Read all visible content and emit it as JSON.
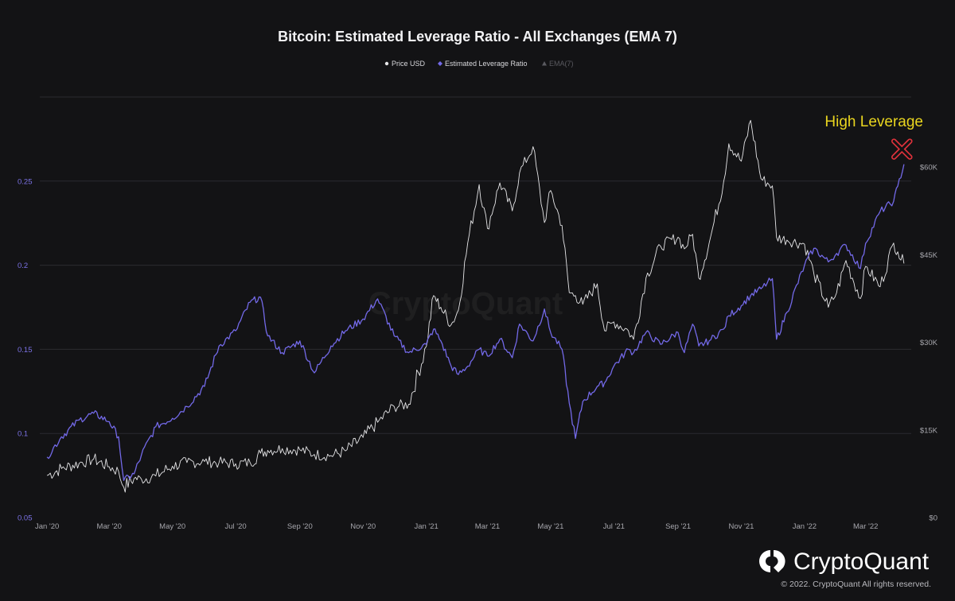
{
  "page": {
    "copyright": "© 2022. CryptoQuant All rights reserved.",
    "brand_name": "CryptoQuant",
    "watermark": "CryptoQuant",
    "colors": {
      "background": "#131315",
      "leverage": "#7369e8",
      "price": "#e6e6e8",
      "annotation": "#e9d51f",
      "marker": "#e0323c"
    }
  },
  "chart_data": {
    "type": "line",
    "title": "Bitcoin: Estimated Leverage Ratio - All Exchanges (EMA 7)",
    "legend": [
      {
        "label": "Price USD",
        "marker": "circle",
        "color": "#e6e6e8",
        "active": true
      },
      {
        "label": "Estimated Leverage Ratio",
        "marker": "diamond",
        "color": "#7369e8",
        "active": true
      },
      {
        "label": "EMA(7)",
        "marker": "triangle",
        "color": "#5a5a60",
        "active": false
      }
    ],
    "legend_position": "top-center",
    "grid": true,
    "x": [
      "2020-01-01",
      "2020-01-15",
      "2020-02-01",
      "2020-02-15",
      "2020-03-01",
      "2020-03-10",
      "2020-03-15",
      "2020-03-25",
      "2020-04-01",
      "2020-04-15",
      "2020-05-01",
      "2020-05-15",
      "2020-06-01",
      "2020-06-15",
      "2020-07-01",
      "2020-07-15",
      "2020-07-25",
      "2020-08-01",
      "2020-08-15",
      "2020-09-01",
      "2020-09-15",
      "2020-10-01",
      "2020-10-15",
      "2020-11-01",
      "2020-11-15",
      "2020-12-01",
      "2020-12-15",
      "2021-01-01",
      "2021-01-08",
      "2021-01-15",
      "2021-01-25",
      "2021-02-01",
      "2021-02-10",
      "2021-02-21",
      "2021-03-01",
      "2021-03-13",
      "2021-03-25",
      "2021-04-01",
      "2021-04-14",
      "2021-04-25",
      "2021-05-01",
      "2021-05-12",
      "2021-05-19",
      "2021-05-25",
      "2021-06-01",
      "2021-06-15",
      "2021-06-22",
      "2021-07-01",
      "2021-07-15",
      "2021-07-20",
      "2021-08-01",
      "2021-08-15",
      "2021-09-01",
      "2021-09-07",
      "2021-09-15",
      "2021-09-21",
      "2021-10-01",
      "2021-10-15",
      "2021-10-20",
      "2021-11-01",
      "2021-11-10",
      "2021-11-20",
      "2021-12-01",
      "2021-12-05",
      "2021-12-15",
      "2022-01-01",
      "2022-01-10",
      "2022-01-24",
      "2022-02-01",
      "2022-02-10",
      "2022-02-24",
      "2022-03-01",
      "2022-03-15",
      "2022-03-28",
      "2022-04-01",
      "2022-04-07"
    ],
    "series": [
      {
        "name": "Estimated Leverage Ratio",
        "axis": "left",
        "color": "#7369e8",
        "values": [
          0.086,
          0.098,
          0.108,
          0.112,
          0.107,
          0.098,
          0.072,
          0.076,
          0.087,
          0.104,
          0.109,
          0.116,
          0.128,
          0.152,
          0.161,
          0.178,
          0.181,
          0.158,
          0.148,
          0.155,
          0.136,
          0.152,
          0.161,
          0.168,
          0.18,
          0.158,
          0.148,
          0.153,
          0.162,
          0.155,
          0.14,
          0.135,
          0.14,
          0.15,
          0.146,
          0.156,
          0.145,
          0.165,
          0.155,
          0.174,
          0.16,
          0.15,
          0.118,
          0.097,
          0.119,
          0.128,
          0.13,
          0.14,
          0.15,
          0.148,
          0.16,
          0.153,
          0.16,
          0.148,
          0.165,
          0.152,
          0.155,
          0.162,
          0.17,
          0.176,
          0.182,
          0.186,
          0.192,
          0.156,
          0.172,
          0.2,
          0.21,
          0.202,
          0.207,
          0.212,
          0.198,
          0.213,
          0.232,
          0.238,
          0.247,
          0.26
        ]
      },
      {
        "name": "Price USD",
        "axis": "right",
        "color": "#e6e6e8",
        "values": [
          7200,
          8400,
          9300,
          10000,
          8700,
          7900,
          5200,
          6700,
          6600,
          7100,
          8800,
          9400,
          9600,
          9400,
          9200,
          9400,
          11000,
          11500,
          11800,
          11600,
          10800,
          10600,
          11400,
          13700,
          16300,
          19000,
          19400,
          29300,
          38000,
          36000,
          33000,
          35500,
          47000,
          57000,
          49500,
          57300,
          52500,
          59000,
          63500,
          50500,
          56000,
          50000,
          38500,
          38000,
          36500,
          40000,
          32000,
          33500,
          32000,
          30500,
          41000,
          46500,
          48000,
          46000,
          48500,
          41000,
          47000,
          57500,
          64000,
          61000,
          68000,
          58000,
          56800,
          48000,
          47500,
          46800,
          41800,
          36000,
          38500,
          44000,
          37500,
          43000,
          39500,
          47000,
          45500,
          43500
        ]
      }
    ],
    "y_left": {
      "range": [
        0.05,
        0.3
      ],
      "ticks": [
        "0.05",
        "0.1",
        "0.15",
        "0.2",
        "0.25"
      ]
    },
    "y_right": {
      "range": [
        0,
        72000
      ],
      "ticks": [
        "$0",
        "$15K",
        "$30K",
        "$45K",
        "$60K"
      ]
    },
    "x_range": [
      "2019-12-25",
      "2022-04-14"
    ],
    "x_ticks": [
      {
        "date": "2020-01-01",
        "label": "Jan '20"
      },
      {
        "date": "2020-03-01",
        "label": "Mar '20"
      },
      {
        "date": "2020-05-01",
        "label": "May '20"
      },
      {
        "date": "2020-07-01",
        "label": "Jul '20"
      },
      {
        "date": "2020-09-01",
        "label": "Sep '20"
      },
      {
        "date": "2020-11-01",
        "label": "Nov '20"
      },
      {
        "date": "2021-01-01",
        "label": "Jan '21"
      },
      {
        "date": "2021-03-01",
        "label": "Mar '21"
      },
      {
        "date": "2021-05-01",
        "label": "May '21"
      },
      {
        "date": "2021-07-01",
        "label": "Jul '21"
      },
      {
        "date": "2021-09-01",
        "label": "Sep '21"
      },
      {
        "date": "2021-11-01",
        "label": "Nov '21"
      },
      {
        "date": "2022-01-01",
        "label": "Jan '22"
      },
      {
        "date": "2022-03-01",
        "label": "Mar '22"
      }
    ],
    "annotation": {
      "text": "High Leverage",
      "date": "2022-04-05",
      "value": 0.269,
      "marker": "x"
    }
  }
}
